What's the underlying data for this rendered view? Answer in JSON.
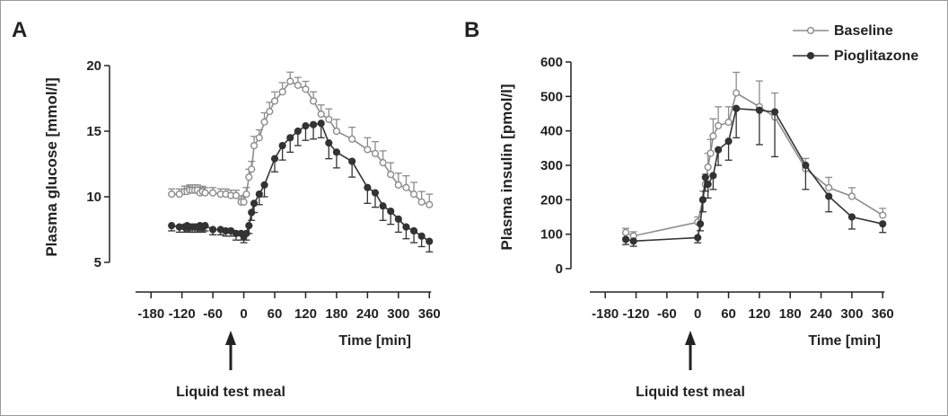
{
  "colors": {
    "baseline": "#8c8c8c",
    "pioglitazone": "#333333",
    "axis": "#222222"
  },
  "chart_data": [
    {
      "type": "line",
      "panel_label": "A",
      "ylabel": "Plasma glucose [mmol/l]",
      "xlabel": "Time [min]",
      "annotation": "Liquid test meal",
      "xlim": [
        -210,
        370
      ],
      "ylim": [
        5,
        20
      ],
      "x_ticks": [
        -180,
        -120,
        -60,
        0,
        60,
        120,
        180,
        240,
        300,
        360
      ],
      "x_tick_labels": [
        "-180",
        "-120",
        "-60",
        "0",
        "60",
        "120",
        "180",
        "240",
        "300",
        "360"
      ],
      "y_ticks": [
        5,
        10,
        15,
        20
      ],
      "y_tick_labels": [
        "5",
        "10",
        "15",
        "20"
      ],
      "grid": false,
      "series": [
        {
          "name": "Baseline",
          "marker": "open-circle",
          "x": [
            -140,
            -125,
            -115,
            -110,
            -105,
            -100,
            -95,
            -90,
            -85,
            -80,
            -75,
            -60,
            -45,
            -35,
            -25,
            -15,
            -5,
            0,
            5,
            10,
            15,
            20,
            30,
            40,
            50,
            60,
            75,
            90,
            105,
            120,
            135,
            150,
            165,
            180,
            210,
            240,
            255,
            270,
            285,
            300,
            315,
            330,
            345,
            360
          ],
          "y": [
            10.2,
            10.2,
            10.4,
            10.4,
            10.5,
            10.5,
            10.5,
            10.5,
            10.3,
            10.4,
            10.3,
            10.3,
            10.2,
            10.2,
            10.1,
            10.1,
            9.6,
            9.6,
            10.2,
            11.5,
            12.1,
            13.9,
            14.5,
            15.7,
            16.5,
            17.3,
            18.0,
            18.8,
            18.5,
            18.2,
            17.3,
            16.3,
            15.9,
            15.0,
            14.4,
            13.6,
            13.3,
            12.6,
            11.7,
            10.9,
            10.7,
            10.2,
            9.6,
            9.4
          ],
          "error": [
            0.4,
            0.4,
            0.4,
            0.4,
            0.4,
            0.4,
            0.4,
            0.4,
            0.4,
            0.4,
            0.4,
            0.4,
            0.4,
            0.4,
            0.4,
            0.4,
            0.4,
            0.5,
            0.5,
            0.6,
            0.6,
            0.7,
            0.6,
            0.7,
            0.7,
            0.7,
            0.7,
            0.7,
            0.6,
            0.6,
            0.7,
            0.7,
            0.8,
            0.9,
            0.9,
            0.9,
            0.9,
            0.9,
            0.9,
            0.9,
            0.9,
            0.9,
            0.8,
            0.8
          ]
        },
        {
          "name": "Pioglitazone",
          "marker": "filled-circle",
          "x": [
            -140,
            -125,
            -115,
            -110,
            -105,
            -100,
            -95,
            -90,
            -85,
            -80,
            -75,
            -60,
            -45,
            -35,
            -25,
            -15,
            -5,
            0,
            5,
            10,
            15,
            20,
            30,
            40,
            60,
            75,
            90,
            105,
            120,
            135,
            150,
            165,
            180,
            210,
            240,
            255,
            270,
            285,
            300,
            315,
            330,
            345,
            360
          ],
          "y": [
            7.8,
            7.7,
            7.7,
            7.8,
            7.7,
            7.7,
            7.7,
            7.7,
            7.8,
            7.7,
            7.8,
            7.5,
            7.5,
            7.4,
            7.4,
            7.2,
            7.2,
            7.0,
            7.2,
            7.8,
            8.8,
            9.5,
            10.2,
            10.9,
            12.9,
            13.9,
            14.5,
            15.0,
            15.4,
            15.5,
            15.6,
            14.1,
            13.4,
            12.7,
            10.7,
            10.3,
            9.3,
            8.9,
            8.3,
            7.7,
            7.4,
            7.0,
            6.6
          ],
          "error": [
            0.4,
            0.4,
            0.4,
            0.4,
            0.4,
            0.4,
            0.4,
            0.4,
            0.4,
            0.4,
            0.4,
            0.4,
            0.4,
            0.4,
            0.4,
            0.5,
            0.5,
            0.5,
            0.5,
            0.6,
            0.6,
            0.7,
            0.8,
            0.9,
            1.0,
            1.1,
            1.1,
            1.1,
            1.1,
            1.1,
            1.1,
            1.2,
            1.2,
            1.2,
            1.2,
            1.1,
            1.1,
            1.0,
            1.0,
            0.9,
            0.9,
            0.8,
            0.8
          ]
        }
      ]
    },
    {
      "type": "line",
      "panel_label": "B",
      "ylabel": "Plasma insulin [pmol/l]",
      "xlabel": "Time [min]",
      "annotation": "Liquid test meal",
      "xlim": [
        -210,
        370
      ],
      "ylim": [
        0,
        600
      ],
      "x_ticks": [
        -180,
        -120,
        -60,
        0,
        60,
        120,
        180,
        240,
        300,
        360
      ],
      "x_tick_labels": [
        "-180",
        "-120",
        "-60",
        "0",
        "60",
        "120",
        "180",
        "240",
        "300",
        "360"
      ],
      "y_ticks": [
        0,
        100,
        200,
        300,
        400,
        500,
        600
      ],
      "y_tick_labels": [
        "0",
        "100",
        "200",
        "300",
        "400",
        "500",
        "600"
      ],
      "grid": false,
      "legend": {
        "placement": "top-right",
        "entries": [
          "Baseline",
          "Pioglitazone"
        ]
      },
      "series": [
        {
          "name": "Baseline",
          "marker": "open-circle",
          "x": [
            -140,
            -125,
            0,
            10,
            15,
            20,
            25,
            30,
            40,
            60,
            75,
            120,
            150,
            210,
            255,
            300,
            360
          ],
          "y": [
            105,
            95,
            135,
            200,
            245,
            295,
            335,
            385,
            415,
            425,
            510,
            470,
            440,
            290,
            235,
            210,
            155
          ],
          "error": [
            12,
            12,
            15,
            25,
            30,
            40,
            40,
            50,
            55,
            45,
            60,
            75,
            70,
            30,
            30,
            25,
            20
          ]
        },
        {
          "name": "Pioglitazone",
          "marker": "filled-circle",
          "x": [
            -140,
            -125,
            0,
            5,
            10,
            15,
            20,
            30,
            40,
            60,
            75,
            120,
            150,
            210,
            255,
            300,
            360
          ],
          "y": [
            85,
            80,
            90,
            130,
            200,
            265,
            245,
            270,
            345,
            370,
            465,
            460,
            455,
            300,
            210,
            150,
            130
          ],
          "error": [
            15,
            15,
            15,
            20,
            35,
            40,
            40,
            40,
            45,
            55,
            85,
            100,
            130,
            70,
            45,
            35,
            25
          ]
        }
      ]
    }
  ]
}
